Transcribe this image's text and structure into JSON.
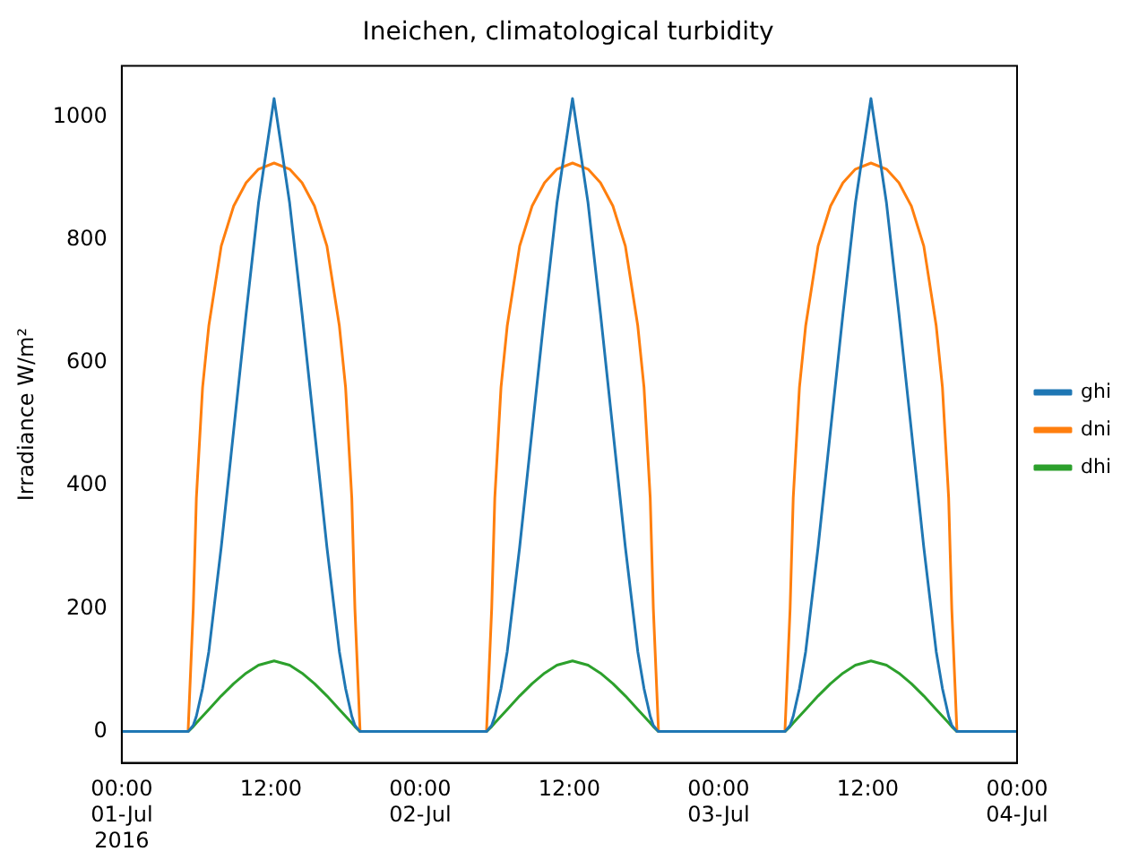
{
  "chart_data": {
    "type": "line",
    "title": "Ineichen, climatological turbidity",
    "ylabel": "Irradiance W/m²",
    "x": [
      "2016-07-01T00:00",
      "2016-07-01T05:20",
      "2016-07-01T05:45",
      "2016-07-01T06:00",
      "2016-07-01T06:30",
      "2016-07-01T07:00",
      "2016-07-01T08:00",
      "2016-07-01T09:00",
      "2016-07-01T10:00",
      "2016-07-01T11:00",
      "2016-07-01T12:15",
      "2016-07-01T13:30",
      "2016-07-01T14:30",
      "2016-07-01T15:30",
      "2016-07-01T16:30",
      "2016-07-01T17:30",
      "2016-07-01T18:00",
      "2016-07-01T18:30",
      "2016-07-01T18:45",
      "2016-07-01T19:10",
      "2016-07-02T05:20",
      "2016-07-02T05:45",
      "2016-07-02T06:00",
      "2016-07-02T06:30",
      "2016-07-02T07:00",
      "2016-07-02T08:00",
      "2016-07-02T09:00",
      "2016-07-02T10:00",
      "2016-07-02T11:00",
      "2016-07-02T12:15",
      "2016-07-02T13:30",
      "2016-07-02T14:30",
      "2016-07-02T15:30",
      "2016-07-02T16:30",
      "2016-07-02T17:30",
      "2016-07-02T18:00",
      "2016-07-02T18:30",
      "2016-07-02T18:45",
      "2016-07-02T19:10",
      "2016-07-03T05:20",
      "2016-07-03T05:45",
      "2016-07-03T06:00",
      "2016-07-03T06:30",
      "2016-07-03T07:00",
      "2016-07-03T08:00",
      "2016-07-03T09:00",
      "2016-07-03T10:00",
      "2016-07-03T11:00",
      "2016-07-03T12:15",
      "2016-07-03T13:30",
      "2016-07-03T14:30",
      "2016-07-03T15:30",
      "2016-07-03T16:30",
      "2016-07-03T17:30",
      "2016-07-03T18:00",
      "2016-07-03T18:30",
      "2016-07-03T18:45",
      "2016-07-03T19:10",
      "2016-07-04T00:00"
    ],
    "series": [
      {
        "name": "ghi",
        "color": "#1f77b4",
        "values": [
          0,
          0,
          10,
          25,
          70,
          130,
          300,
          490,
          680,
          860,
          1030,
          860,
          680,
          490,
          300,
          130,
          70,
          25,
          10,
          0,
          0,
          10,
          25,
          70,
          130,
          300,
          490,
          680,
          860,
          1030,
          860,
          680,
          490,
          300,
          130,
          70,
          25,
          10,
          0,
          0,
          10,
          25,
          70,
          130,
          300,
          490,
          680,
          860,
          1030,
          860,
          680,
          490,
          300,
          130,
          70,
          25,
          10,
          0,
          0
        ]
      },
      {
        "name": "dni",
        "color": "#ff7f0e",
        "values": [
          0,
          0,
          200,
          380,
          560,
          660,
          790,
          855,
          893,
          915,
          925,
          915,
          893,
          855,
          790,
          660,
          560,
          380,
          200,
          0,
          0,
          200,
          380,
          560,
          660,
          790,
          855,
          893,
          915,
          925,
          915,
          893,
          855,
          790,
          660,
          560,
          380,
          200,
          0,
          0,
          200,
          380,
          560,
          660,
          790,
          855,
          893,
          915,
          925,
          915,
          893,
          855,
          790,
          660,
          560,
          380,
          200,
          0,
          0
        ]
      },
      {
        "name": "dhi",
        "color": "#2ca02c",
        "values": [
          0,
          0,
          8,
          14,
          25,
          36,
          58,
          78,
          95,
          108,
          115,
          108,
          95,
          78,
          58,
          36,
          25,
          14,
          8,
          0,
          0,
          8,
          14,
          25,
          36,
          58,
          78,
          95,
          108,
          115,
          108,
          95,
          78,
          58,
          36,
          25,
          14,
          8,
          0,
          0,
          8,
          14,
          25,
          36,
          58,
          78,
          95,
          108,
          115,
          108,
          95,
          78,
          58,
          36,
          25,
          14,
          8,
          0,
          0
        ]
      }
    ],
    "xlim": [
      "2016-07-01T00:00",
      "2016-07-04T00:00"
    ],
    "xticks": [
      {
        "value": "2016-07-01T00:00",
        "label": "00:00\n01-Jul\n2016"
      },
      {
        "value": "2016-07-01T12:00",
        "label": "12:00"
      },
      {
        "value": "2016-07-02T00:00",
        "label": "00:00\n02-Jul"
      },
      {
        "value": "2016-07-02T12:00",
        "label": "12:00"
      },
      {
        "value": "2016-07-03T00:00",
        "label": "00:00\n03-Jul"
      },
      {
        "value": "2016-07-03T12:00",
        "label": "12:00"
      },
      {
        "value": "2016-07-04T00:00",
        "label": "00:00\n04-Jul"
      }
    ],
    "ylim": [
      -51,
      1083
    ],
    "yticks": [
      0,
      200,
      400,
      600,
      800,
      1000
    ],
    "grid": false,
    "legend": "right",
    "marker": "none",
    "line_style": "solid"
  }
}
